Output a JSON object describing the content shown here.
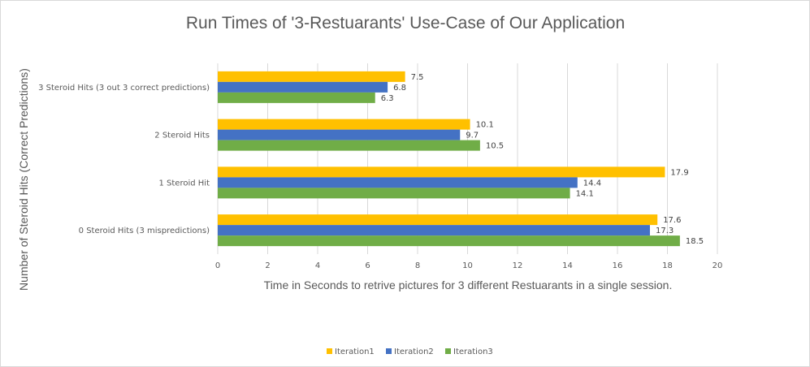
{
  "chart_data": {
    "type": "bar",
    "orientation": "horizontal",
    "title": "Run Times of '3-Restuarants' Use-Case of Our Application",
    "xlabel": "Time in Seconds to retrive pictures for 3 different Restuarants in a single session.",
    "ylabel": "Number of Steroid Hits (Correct Predictions)",
    "xlim": [
      0,
      20
    ],
    "xticks": [
      "0",
      "2",
      "4",
      "6",
      "8",
      "10",
      "12",
      "14",
      "16",
      "18",
      "20"
    ],
    "grid": true,
    "legend_position": "bottom",
    "categories": [
      "3 Steroid Hits (3 out 3 correct predictions)",
      "2 Steroid Hits",
      "1 Steroid Hit",
      "0 Steroid Hits (3 mispredictions)"
    ],
    "series": [
      {
        "name": "Iteration1",
        "color": "#FFC000",
        "values": [
          7.5,
          10.1,
          17.9,
          17.6
        ]
      },
      {
        "name": "Iteration2",
        "color": "#4472C4",
        "values": [
          6.8,
          9.7,
          14.4,
          17.3
        ]
      },
      {
        "name": "Iteration3",
        "color": "#70AD47",
        "values": [
          6.3,
          10.5,
          14.1,
          18.5
        ]
      }
    ]
  }
}
